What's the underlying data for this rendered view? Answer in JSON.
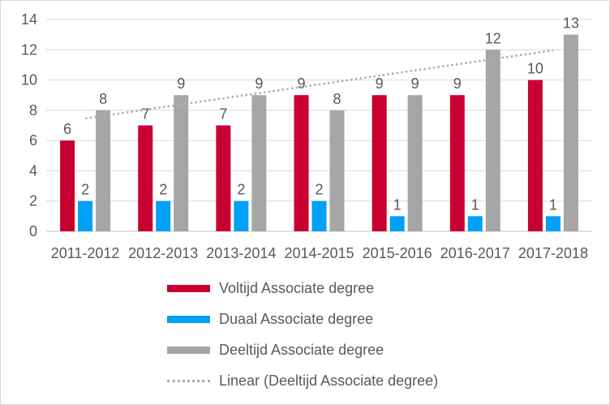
{
  "chart_data": {
    "type": "bar",
    "title": "",
    "xlabel": "",
    "ylabel": "",
    "categories": [
      "2011-2012",
      "2012-2013",
      "2013-2014",
      "2014-2015",
      "2015-2016",
      "2016-2017",
      "2017-2018"
    ],
    "series": [
      {
        "name": "Voltijd Associate degree",
        "color": "#c80032",
        "values": [
          6,
          7,
          7,
          9,
          9,
          9,
          10
        ]
      },
      {
        "name": "Duaal Associate degree",
        "color": "#00a0f5",
        "values": [
          2,
          2,
          2,
          2,
          1,
          1,
          1
        ]
      },
      {
        "name": "Deeltijd Associate degree",
        "color": "#a6a6a6",
        "values": [
          8,
          9,
          9,
          8,
          9,
          12,
          13
        ]
      }
    ],
    "trendline": {
      "name": "Linear (Deeltijd Associate degree)",
      "based_on_series": "Deeltijd Associate degree",
      "color": "#adadad",
      "style": "dotted",
      "start_value": 7.46,
      "end_value": 11.96
    },
    "ylim": [
      0,
      14
    ],
    "yticks": [
      0,
      2,
      4,
      6,
      8,
      10,
      12,
      14
    ],
    "grid": true,
    "data_labels": true,
    "legend_position": "bottom-left"
  },
  "style": {
    "text_color": "#595959",
    "gridline_color": "#d9d9d9",
    "axis_line_color": "#c0c0c0",
    "background_color": "#ffffff"
  }
}
